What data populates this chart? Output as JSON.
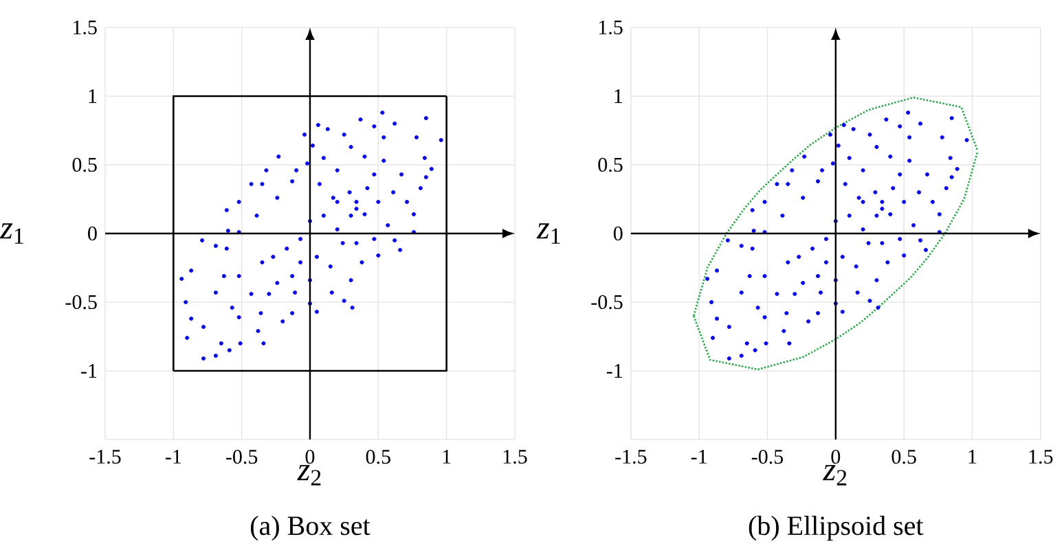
{
  "chart_data": [
    {
      "type": "scatter",
      "title": "(a) Box set",
      "xlabel": "*z*$_{2}$",
      "ylabel": "*z*$_{1}$",
      "xlim": [
        -1.5,
        1.5
      ],
      "ylim": [
        -1.5,
        1.5
      ],
      "xticks": [
        -1.5,
        -1,
        -0.5,
        0,
        0.5,
        1,
        1.5
      ],
      "yticks": [
        {
          "value": -1.5,
          "label": null
        },
        -1,
        -0.5,
        0,
        0.5,
        1,
        1.5
      ],
      "grid": true,
      "marker": "circle",
      "series": [
        {
          "color": "#0000ff",
          "x": [
            -0.78,
            -0.9,
            -0.91,
            -0.94,
            -0.87,
            -0.87,
            -0.78,
            -0.69,
            -0.65,
            -0.59,
            -0.51,
            -0.52,
            -0.57,
            -0.69,
            -0.63,
            -0.79,
            -0.69,
            -0.61,
            -0.52,
            -0.43,
            -0.34,
            -0.38,
            -0.36,
            -0.3,
            -0.2,
            -0.13,
            -0.11,
            0,
            0.05,
            0.16,
            0.25,
            0.31,
            0.3,
            0.38,
            0.5,
            0.62,
            0.66,
            0.76,
            0.76,
            0.71,
            0.81,
            0.85,
            0.89,
            0.84,
            0.96,
            0.85,
            0.78,
            0.62,
            0.53,
            0.47,
            0.37,
            0.25,
            0.13,
            0.06,
            -0.04,
            0.02,
            -0.23,
            -0.32,
            -0.35,
            -0.43,
            -0.52,
            -0.61,
            -0.6,
            -0.52,
            -0.39,
            -0.24,
            -0.13,
            -0.1,
            -0.02,
            0.1,
            0.2,
            0.29,
            0.34,
            0.42,
            0.47,
            0.54,
            0.61,
            0.57,
            0.47,
            0.34,
            0.2,
            0.1,
            0,
            -0.07,
            -0.17,
            -0.27,
            -0.35,
            -0.07,
            0.05,
            0.15,
            -0.13,
            -0.24,
            0,
            0.24,
            0.34,
            0.17,
            0.07,
            0.2,
            0.3,
            0.4,
            0.5,
            0.67,
            0.4,
            0.3,
            0.54
          ],
          "values": [
            -0.91,
            -0.76,
            -0.5,
            -0.33,
            -0.27,
            -0.62,
            -0.68,
            -0.89,
            -0.8,
            -0.85,
            -0.8,
            -0.61,
            -0.54,
            -0.43,
            -0.31,
            -0.05,
            -0.09,
            -0.11,
            -0.31,
            -0.44,
            -0.8,
            -0.71,
            -0.58,
            -0.44,
            -0.64,
            -0.58,
            -0.43,
            -0.51,
            -0.57,
            -0.43,
            -0.49,
            -0.54,
            -0.34,
            -0.21,
            -0.16,
            -0.05,
            -0.12,
            0.01,
            0.14,
            0.23,
            0.33,
            0.41,
            0.47,
            0.55,
            0.68,
            0.84,
            0.7,
            0.8,
            0.88,
            0.78,
            0.83,
            0.72,
            0.76,
            0.79,
            0.72,
            0.64,
            0.56,
            0.46,
            0.36,
            0.36,
            0.23,
            0.17,
            0.02,
            0.01,
            0.13,
            0.26,
            0.38,
            0.46,
            0.51,
            0.55,
            0.46,
            0.3,
            0.18,
            0.33,
            0.43,
            0.53,
            0.3,
            0.06,
            -0.04,
            -0.07,
            0.03,
            0.13,
            0.09,
            -0.04,
            -0.11,
            -0.17,
            -0.21,
            -0.21,
            -0.17,
            -0.24,
            -0.31,
            -0.36,
            -0.34,
            -0.07,
            0.23,
            0.26,
            0.36,
            0.23,
            0.13,
            0.14,
            0.23,
            0.43,
            0.56,
            0.63,
            0.7
          ]
        },
        {
          "type": "line",
          "marker": "none",
          "color": "#000000",
          "line_style": "solid",
          "x": [
            -1,
            -1,
            1
          ],
          "values": [
            -1,
            1,
            1
          ]
        },
        {
          "type": "line",
          "marker": "none",
          "color": "#000000",
          "line_style": "solid",
          "x": [
            -1,
            1,
            1
          ],
          "values": [
            -1,
            -1,
            1
          ]
        }
      ]
    },
    {
      "type": "scatter",
      "title": "(b) Ellipsoid set",
      "xlabel": "*z*$_{2}$",
      "ylabel": "*z*$_{1}$",
      "xlim": [
        -1.5,
        1.5
      ],
      "ylim": [
        -1.5,
        1.5
      ],
      "xticks": [
        -1.5,
        -1,
        -0.5,
        0,
        0.5,
        1,
        1.5
      ],
      "yticks": [
        {
          "value": -1.5,
          "label": null
        },
        -1,
        -0.5,
        0,
        0.5,
        1,
        1.5
      ],
      "grid": true,
      "marker": "circle",
      "series": [
        {
          "color": "#0000ff",
          "x": [
            -0.78,
            -0.9,
            -0.91,
            -0.94,
            -0.87,
            -0.87,
            -0.78,
            -0.69,
            -0.65,
            -0.59,
            -0.51,
            -0.52,
            -0.57,
            -0.69,
            -0.63,
            -0.79,
            -0.69,
            -0.61,
            -0.52,
            -0.43,
            -0.34,
            -0.38,
            -0.36,
            -0.3,
            -0.2,
            -0.13,
            -0.11,
            0,
            0.05,
            0.16,
            0.25,
            0.31,
            0.3,
            0.38,
            0.5,
            0.62,
            0.66,
            0.76,
            0.76,
            0.71,
            0.81,
            0.85,
            0.89,
            0.84,
            0.96,
            0.85,
            0.78,
            0.62,
            0.53,
            0.47,
            0.37,
            0.25,
            0.13,
            0.06,
            -0.04,
            0.02,
            -0.23,
            -0.32,
            -0.35,
            -0.43,
            -0.52,
            -0.61,
            -0.6,
            -0.52,
            -0.39,
            -0.24,
            -0.13,
            -0.1,
            -0.02,
            0.1,
            0.2,
            0.29,
            0.34,
            0.42,
            0.47,
            0.54,
            0.61,
            0.57,
            0.47,
            0.34,
            0.2,
            0.1,
            0,
            -0.07,
            -0.17,
            -0.27,
            -0.35,
            -0.07,
            0.05,
            0.15,
            -0.13,
            -0.24,
            0,
            0.24,
            0.34,
            0.17,
            0.07,
            0.2,
            0.3,
            0.4,
            0.5,
            0.67,
            0.4,
            0.3,
            0.54
          ],
          "values": [
            -0.91,
            -0.76,
            -0.5,
            -0.33,
            -0.27,
            -0.62,
            -0.68,
            -0.89,
            -0.8,
            -0.85,
            -0.8,
            -0.61,
            -0.54,
            -0.43,
            -0.31,
            -0.05,
            -0.09,
            -0.11,
            -0.31,
            -0.44,
            -0.8,
            -0.71,
            -0.58,
            -0.44,
            -0.64,
            -0.58,
            -0.43,
            -0.51,
            -0.57,
            -0.43,
            -0.49,
            -0.54,
            -0.34,
            -0.21,
            -0.16,
            -0.05,
            -0.12,
            0.01,
            0.14,
            0.23,
            0.33,
            0.41,
            0.47,
            0.55,
            0.68,
            0.84,
            0.7,
            0.8,
            0.88,
            0.78,
            0.83,
            0.72,
            0.76,
            0.79,
            0.72,
            0.64,
            0.56,
            0.46,
            0.36,
            0.36,
            0.23,
            0.17,
            0.02,
            0.01,
            0.13,
            0.26,
            0.38,
            0.46,
            0.51,
            0.55,
            0.46,
            0.3,
            0.18,
            0.33,
            0.43,
            0.53,
            0.3,
            0.06,
            -0.04,
            -0.07,
            0.03,
            0.13,
            0.09,
            -0.04,
            -0.11,
            -0.17,
            -0.21,
            -0.21,
            -0.17,
            -0.24,
            -0.31,
            -0.36,
            -0.34,
            -0.07,
            0.23,
            0.26,
            0.36,
            0.23,
            0.13,
            0.14,
            0.23,
            0.43,
            0.56,
            0.63,
            0.7
          ]
        },
        {
          "type": "line",
          "marker": "none",
          "color": "#22aa44",
          "line_style": "dotted",
          "x": [
            -1.04,
            -0.94,
            -0.8,
            -0.67,
            -0.55,
            -0.43,
            -0.31,
            -0.18,
            0,
            0.24,
            0.57,
            0.92,
            1.04
          ],
          "values": [
            -0.6,
            -0.25,
            0,
            0.18,
            0.32,
            0.43,
            0.54,
            0.65,
            0.77,
            0.9,
            0.99,
            0.92,
            0.6
          ]
        },
        {
          "type": "line",
          "marker": "none",
          "color": "#22aa44",
          "line_style": "dotted",
          "x": [
            -1.04,
            -0.92,
            -0.57,
            -0.24,
            0,
            0.18,
            0.31,
            0.43,
            0.55,
            0.67,
            0.8,
            0.94,
            1.04
          ],
          "values": [
            -0.6,
            -0.92,
            -0.99,
            -0.9,
            -0.77,
            -0.65,
            -0.54,
            -0.43,
            -0.32,
            -0.18,
            0,
            0.25,
            0.6
          ]
        }
      ]
    }
  ]
}
